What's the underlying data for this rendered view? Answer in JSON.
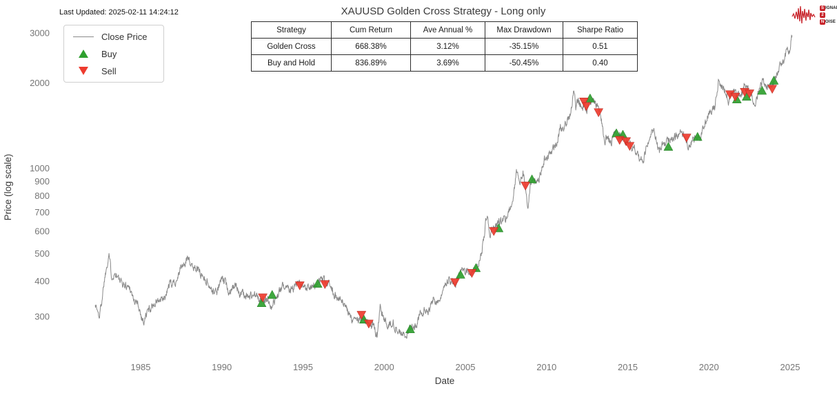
{
  "header": {
    "last_updated": "Last Updated: 2025-02-11 14:24:12"
  },
  "logo": {
    "line1_badge": "S",
    "line1_rest": "IGNAL",
    "line2_badge": "2",
    "line2_rest": "",
    "line3_badge": "N",
    "line3_rest": "OISE",
    "accent_color": "#c8242b"
  },
  "legend": {
    "items": [
      {
        "label": "Close Price",
        "type": "line",
        "color": "#898989"
      },
      {
        "label": "Buy",
        "type": "triangle-up",
        "color": "#2fa02f"
      },
      {
        "label": "Sell",
        "type": "triangle-down",
        "color": "#ee3b2e"
      }
    ]
  },
  "table": {
    "headers": [
      "Strategy",
      "Cum Return",
      "Ave Annual %",
      "Max Drawdown",
      "Sharpe Ratio"
    ],
    "rows": [
      [
        "Golden Cross",
        "668.38%",
        "3.12%",
        "-35.15%",
        "0.51"
      ],
      [
        "Buy and Hold",
        "836.89%",
        "3.69%",
        "-50.45%",
        "0.40"
      ]
    ]
  },
  "chart_data": {
    "type": "line",
    "title": "XAUUSD Golden Cross Strategy - Long only",
    "xlabel": "Date",
    "ylabel": "Price (log scale)",
    "y_scale": "log",
    "grid": false,
    "xlim": [
      1982.0,
      2026.3
    ],
    "ylim": [
      230,
      3300
    ],
    "x_ticks": [
      1985,
      1990,
      1995,
      2000,
      2005,
      2010,
      2015,
      2020,
      2025
    ],
    "y_ticks": [
      300,
      400,
      500,
      600,
      700,
      800,
      900,
      1000,
      2000,
      3000
    ],
    "line_color": "#898989",
    "buy_color": "#2fa02f",
    "sell_color": "#ee3b2e",
    "series": [
      {
        "name": "Close Price",
        "points": [
          [
            1982.2,
            335
          ],
          [
            1982.45,
            299
          ],
          [
            1982.6,
            340
          ],
          [
            1982.75,
            400
          ],
          [
            1982.9,
            450
          ],
          [
            1983.05,
            505
          ],
          [
            1983.2,
            420
          ],
          [
            1983.5,
            425
          ],
          [
            1983.75,
            395
          ],
          [
            1984.1,
            385
          ],
          [
            1984.35,
            380
          ],
          [
            1984.6,
            340
          ],
          [
            1984.85,
            330
          ],
          [
            1985.1,
            295
          ],
          [
            1985.2,
            288
          ],
          [
            1985.45,
            315
          ],
          [
            1985.7,
            327
          ],
          [
            1986.0,
            340
          ],
          [
            1986.3,
            340
          ],
          [
            1986.55,
            350
          ],
          [
            1986.75,
            390
          ],
          [
            1986.95,
            390
          ],
          [
            1987.2,
            405
          ],
          [
            1987.5,
            450
          ],
          [
            1987.75,
            460
          ],
          [
            1987.95,
            495
          ],
          [
            1988.15,
            445
          ],
          [
            1988.45,
            450
          ],
          [
            1988.7,
            425
          ],
          [
            1989.0,
            405
          ],
          [
            1989.2,
            390
          ],
          [
            1989.45,
            365
          ],
          [
            1989.75,
            370
          ],
          [
            1989.95,
            405
          ],
          [
            1990.2,
            395
          ],
          [
            1990.45,
            368
          ],
          [
            1990.65,
            385
          ],
          [
            1990.85,
            380
          ],
          [
            1991.1,
            365
          ],
          [
            1991.4,
            358
          ],
          [
            1991.7,
            353
          ],
          [
            1992.0,
            358
          ],
          [
            1992.3,
            344
          ],
          [
            1992.6,
            338
          ],
          [
            1992.8,
            345
          ],
          [
            1993.05,
            330
          ],
          [
            1993.3,
            345
          ],
          [
            1993.6,
            370
          ],
          [
            1993.85,
            390
          ],
          [
            1994.1,
            382
          ],
          [
            1994.4,
            377
          ],
          [
            1994.7,
            388
          ],
          [
            1995.0,
            378
          ],
          [
            1995.3,
            384
          ],
          [
            1995.6,
            387
          ],
          [
            1995.9,
            385
          ],
          [
            1996.1,
            405
          ],
          [
            1996.4,
            393
          ],
          [
            1996.7,
            385
          ],
          [
            1997.0,
            355
          ],
          [
            1997.3,
            345
          ],
          [
            1997.6,
            325
          ],
          [
            1997.9,
            298
          ],
          [
            1998.2,
            295
          ],
          [
            1998.5,
            292
          ],
          [
            1998.8,
            288
          ],
          [
            1999.1,
            286
          ],
          [
            1999.35,
            278
          ],
          [
            1999.55,
            257
          ],
          [
            1999.75,
            322
          ],
          [
            1999.95,
            292
          ],
          [
            2000.2,
            282
          ],
          [
            2000.5,
            288
          ],
          [
            2000.8,
            272
          ],
          [
            2001.05,
            262
          ],
          [
            2001.3,
            257
          ],
          [
            2001.6,
            272
          ],
          [
            2001.9,
            278
          ],
          [
            2002.2,
            302
          ],
          [
            2002.5,
            315
          ],
          [
            2002.8,
            318
          ],
          [
            2003.05,
            352
          ],
          [
            2003.25,
            336
          ],
          [
            2003.55,
            355
          ],
          [
            2003.8,
            380
          ],
          [
            2003.98,
            412
          ],
          [
            2004.2,
            398
          ],
          [
            2004.4,
            390
          ],
          [
            2004.65,
            420
          ],
          [
            2004.9,
            438
          ],
          [
            2005.15,
            425
          ],
          [
            2005.4,
            428
          ],
          [
            2005.65,
            440
          ],
          [
            2005.9,
            475
          ],
          [
            2006.1,
            550
          ],
          [
            2006.35,
            715
          ],
          [
            2006.5,
            590
          ],
          [
            2006.75,
            620
          ],
          [
            2006.95,
            630
          ],
          [
            2007.2,
            655
          ],
          [
            2007.45,
            665
          ],
          [
            2007.7,
            700
          ],
          [
            2007.95,
            810
          ],
          [
            2008.2,
            1005
          ],
          [
            2008.35,
            905
          ],
          [
            2008.55,
            975
          ],
          [
            2008.7,
            850
          ],
          [
            2008.85,
            735
          ],
          [
            2009.0,
            880
          ],
          [
            2009.15,
            920
          ],
          [
            2009.35,
            900
          ],
          [
            2009.6,
            950
          ],
          [
            2009.85,
            1080
          ],
          [
            2010.1,
            1110
          ],
          [
            2010.35,
            1170
          ],
          [
            2010.6,
            1230
          ],
          [
            2010.85,
            1380
          ],
          [
            2011.05,
            1390
          ],
          [
            2011.3,
            1500
          ],
          [
            2011.5,
            1590
          ],
          [
            2011.68,
            1895
          ],
          [
            2011.8,
            1640
          ],
          [
            2011.95,
            1740
          ],
          [
            2012.1,
            1680
          ],
          [
            2012.3,
            1670
          ],
          [
            2012.5,
            1590
          ],
          [
            2012.7,
            1740
          ],
          [
            2012.85,
            1770
          ],
          [
            2013.05,
            1670
          ],
          [
            2013.25,
            1590
          ],
          [
            2013.45,
            1390
          ],
          [
            2013.55,
            1230
          ],
          [
            2013.75,
            1320
          ],
          [
            2013.95,
            1210
          ],
          [
            2014.15,
            1330
          ],
          [
            2014.4,
            1290
          ],
          [
            2014.6,
            1310
          ],
          [
            2014.85,
            1220
          ],
          [
            2015.05,
            1270
          ],
          [
            2015.25,
            1190
          ],
          [
            2015.5,
            1170
          ],
          [
            2015.75,
            1090
          ],
          [
            2015.95,
            1055
          ],
          [
            2016.2,
            1235
          ],
          [
            2016.5,
            1355
          ],
          [
            2016.7,
            1320
          ],
          [
            2016.95,
            1135
          ],
          [
            2017.2,
            1235
          ],
          [
            2017.45,
            1255
          ],
          [
            2017.7,
            1275
          ],
          [
            2017.95,
            1300
          ],
          [
            2018.2,
            1340
          ],
          [
            2018.45,
            1300
          ],
          [
            2018.7,
            1200
          ],
          [
            2018.95,
            1240
          ],
          [
            2019.2,
            1300
          ],
          [
            2019.45,
            1285
          ],
          [
            2019.65,
            1420
          ],
          [
            2019.85,
            1490
          ],
          [
            2020.05,
            1570
          ],
          [
            2020.2,
            1585
          ],
          [
            2020.35,
            1630
          ],
          [
            2020.6,
            2060
          ],
          [
            2020.75,
            1930
          ],
          [
            2020.95,
            1880
          ],
          [
            2021.1,
            1840
          ],
          [
            2021.2,
            1730
          ],
          [
            2021.4,
            1830
          ],
          [
            2021.55,
            1900
          ],
          [
            2021.7,
            1790
          ],
          [
            2021.9,
            1800
          ],
          [
            2022.05,
            1830
          ],
          [
            2022.2,
            2030
          ],
          [
            2022.35,
            1920
          ],
          [
            2022.55,
            1840
          ],
          [
            2022.7,
            1730
          ],
          [
            2022.85,
            1645
          ],
          [
            2023.0,
            1830
          ],
          [
            2023.15,
            1900
          ],
          [
            2023.3,
            2010
          ],
          [
            2023.45,
            1960
          ],
          [
            2023.6,
            1930
          ],
          [
            2023.75,
            1920
          ],
          [
            2023.85,
            1985
          ],
          [
            2023.95,
            2040
          ],
          [
            2024.1,
            2080
          ],
          [
            2024.25,
            2200
          ],
          [
            2024.45,
            2340
          ],
          [
            2024.6,
            2400
          ],
          [
            2024.75,
            2520
          ],
          [
            2024.85,
            2660
          ],
          [
            2024.95,
            2630
          ],
          [
            2025.03,
            2800
          ],
          [
            2025.12,
            2940
          ]
        ]
      }
    ],
    "buy_signals": [
      [
        1992.45,
        335
      ],
      [
        1993.1,
        358
      ],
      [
        1995.9,
        392
      ],
      [
        1998.75,
        293
      ],
      [
        2001.6,
        271
      ],
      [
        2004.7,
        422
      ],
      [
        2005.65,
        445
      ],
      [
        2007.05,
        615
      ],
      [
        2009.1,
        915
      ],
      [
        2012.68,
        1765
      ],
      [
        2014.3,
        1330
      ],
      [
        2014.7,
        1315
      ],
      [
        2017.5,
        1192
      ],
      [
        2019.3,
        1292
      ],
      [
        2021.72,
        1752
      ],
      [
        2022.32,
        1790
      ],
      [
        2023.27,
        1880
      ],
      [
        2024.0,
        2040
      ]
    ],
    "sell_signals": [
      [
        1992.52,
        350
      ],
      [
        1994.8,
        386
      ],
      [
        1996.35,
        390
      ],
      [
        1998.6,
        304
      ],
      [
        1999.05,
        283
      ],
      [
        2004.36,
        396
      ],
      [
        2005.4,
        427
      ],
      [
        2006.75,
        600
      ],
      [
        2008.7,
        868
      ],
      [
        2012.3,
        1718
      ],
      [
        2012.45,
        1655
      ],
      [
        2013.2,
        1575
      ],
      [
        2014.5,
        1258
      ],
      [
        2014.9,
        1245
      ],
      [
        2015.12,
        1198
      ],
      [
        2018.62,
        1282
      ],
      [
        2021.3,
        1822
      ],
      [
        2021.62,
        1788
      ],
      [
        2022.2,
        1858
      ],
      [
        2022.5,
        1835
      ],
      [
        2023.9,
        1905
      ]
    ]
  }
}
